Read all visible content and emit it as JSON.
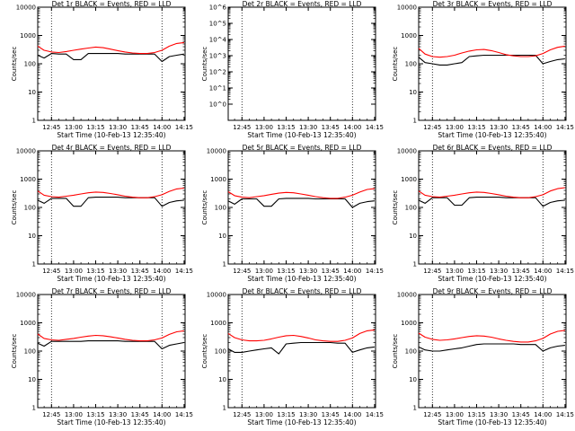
{
  "figure": {
    "xlabel": "Start Time (10-Feb-13 12:35:40)",
    "ylabel": "Counts/sec",
    "x_ticks": [
      "12:45",
      "13:00",
      "13:15",
      "13:30",
      "13:45",
      "14:00",
      "14:15"
    ],
    "colors": {
      "events": "#000000",
      "lld": "#ff0000",
      "axis": "#000000",
      "background": "#ffffff"
    }
  },
  "chart_data": [
    {
      "type": "line",
      "title": "Det 1r BLACK = Events, RED = LLD",
      "xlabel": "Start Time (10-Feb-13 12:35:40)",
      "ylabel": "Counts/sec",
      "xlim": [
        "12:35:40",
        "14:15:40"
      ],
      "y_scale": "log",
      "ylim": [
        1,
        10000
      ],
      "y_ticks": [
        "1",
        "10",
        "100",
        "1000",
        "10000"
      ],
      "vlines": [
        "12:45",
        "14:00"
      ],
      "series": [
        {
          "name": "Events",
          "color": "#000000",
          "x": [
            "12:35:40",
            "12:40",
            "12:45",
            "12:50",
            "12:55",
            "13:00",
            "13:05",
            "13:10",
            "13:15",
            "13:20",
            "13:25",
            "13:30",
            "13:35",
            "13:40",
            "13:45",
            "13:50",
            "13:55",
            "14:00",
            "14:05",
            "14:10",
            "14:15"
          ],
          "y": [
            200,
            160,
            230,
            220,
            220,
            140,
            140,
            230,
            230,
            230,
            230,
            230,
            220,
            220,
            220,
            220,
            220,
            120,
            180,
            200,
            220
          ]
        },
        {
          "name": "LLD",
          "color": "#ff0000",
          "x": [
            "12:35:40",
            "12:40",
            "12:45",
            "12:50",
            "12:55",
            "13:00",
            "13:05",
            "13:10",
            "13:15",
            "13:20",
            "13:25",
            "13:30",
            "13:35",
            "13:40",
            "13:45",
            "13:50",
            "13:55",
            "14:00",
            "14:05",
            "14:10",
            "14:15"
          ],
          "y": [
            420,
            300,
            260,
            250,
            270,
            300,
            330,
            360,
            390,
            370,
            330,
            290,
            260,
            240,
            230,
            230,
            250,
            300,
            420,
            520,
            560
          ]
        }
      ]
    },
    {
      "type": "line",
      "title": "Det 2r BLACK = Events, RED = LLD",
      "xlabel": "Start Time (10-Feb-13 12:35:40)",
      "ylabel": "Counts/sec",
      "xlim": [
        "12:35:40",
        "14:15:40"
      ],
      "y_scale": "log",
      "ylim": [
        0.1,
        1000000
      ],
      "y_ticks": [
        "10^0",
        "10^1",
        "10^2",
        "10^3",
        "10^4",
        "10^5",
        "10^6"
      ],
      "vlines": [
        "12:45",
        "14:00"
      ],
      "series": []
    },
    {
      "type": "line",
      "title": "Det 3r BLACK = Events, RED = LLD",
      "xlabel": "Start Time (10-Feb-13 12:35:40)",
      "ylabel": "Counts/sec",
      "xlim": [
        "12:35:40",
        "14:15:40"
      ],
      "y_scale": "log",
      "ylim": [
        1,
        10000
      ],
      "y_ticks": [
        "1",
        "10",
        "100",
        "1000",
        "10000"
      ],
      "vlines": [
        "12:45",
        "14:00"
      ],
      "series": [
        {
          "name": "Events",
          "color": "#000000",
          "x": [
            "12:35:40",
            "12:40",
            "12:45",
            "12:50",
            "12:55",
            "13:00",
            "13:05",
            "13:10",
            "13:15",
            "13:20",
            "13:25",
            "13:30",
            "13:35",
            "13:40",
            "13:45",
            "13:50",
            "13:55",
            "14:00",
            "14:05",
            "14:10",
            "14:15"
          ],
          "y": [
            170,
            110,
            100,
            90,
            90,
            100,
            110,
            180,
            190,
            200,
            200,
            200,
            200,
            200,
            200,
            200,
            200,
            100,
            120,
            140,
            150
          ]
        },
        {
          "name": "LLD",
          "color": "#ff0000",
          "x": [
            "12:35:40",
            "12:40",
            "12:45",
            "12:50",
            "12:55",
            "13:00",
            "13:05",
            "13:10",
            "13:15",
            "13:20",
            "13:25",
            "13:30",
            "13:35",
            "13:40",
            "13:45",
            "13:50",
            "13:55",
            "14:00",
            "14:05",
            "14:10",
            "14:15"
          ],
          "y": [
            350,
            220,
            180,
            170,
            180,
            200,
            240,
            280,
            310,
            320,
            290,
            250,
            210,
            190,
            180,
            180,
            190,
            230,
            310,
            380,
            420
          ]
        }
      ]
    },
    {
      "type": "line",
      "title": "Det 4r BLACK = Events, RED = LLD",
      "xlabel": "Start Time (10-Feb-13 12:35:40)",
      "ylabel": "Counts/sec",
      "xlim": [
        "12:35:40",
        "14:15:40"
      ],
      "y_scale": "log",
      "ylim": [
        1,
        10000
      ],
      "y_ticks": [
        "1",
        "10",
        "100",
        "1000",
        "10000"
      ],
      "vlines": [
        "12:45",
        "14:00"
      ],
      "series": [
        {
          "name": "Events",
          "color": "#000000",
          "x": [
            "12:35:40",
            "12:40",
            "12:45",
            "12:50",
            "12:55",
            "13:00",
            "13:05",
            "13:10",
            "13:15",
            "13:20",
            "13:25",
            "13:30",
            "13:35",
            "13:40",
            "13:45",
            "13:50",
            "13:55",
            "14:00",
            "14:05",
            "14:10",
            "14:15"
          ],
          "y": [
            180,
            140,
            210,
            210,
            210,
            110,
            110,
            220,
            230,
            230,
            230,
            230,
            220,
            220,
            220,
            220,
            220,
            110,
            150,
            170,
            180
          ]
        },
        {
          "name": "LLD",
          "color": "#ff0000",
          "x": [
            "12:35:40",
            "12:40",
            "12:45",
            "12:50",
            "12:55",
            "13:00",
            "13:05",
            "13:10",
            "13:15",
            "13:20",
            "13:25",
            "13:30",
            "13:35",
            "13:40",
            "13:45",
            "13:50",
            "13:55",
            "14:00",
            "14:05",
            "14:10",
            "14:15"
          ],
          "y": [
            380,
            270,
            240,
            230,
            250,
            270,
            300,
            330,
            350,
            340,
            310,
            280,
            250,
            230,
            220,
            220,
            240,
            280,
            370,
            450,
            480
          ]
        }
      ]
    },
    {
      "type": "line",
      "title": "Det 5r BLACK = Events, RED = LLD",
      "xlabel": "Start Time (10-Feb-13 12:35:40)",
      "ylabel": "Counts/sec",
      "xlim": [
        "12:35:40",
        "14:15:40"
      ],
      "y_scale": "log",
      "ylim": [
        1,
        10000
      ],
      "y_ticks": [
        "1",
        "10",
        "100",
        "1000",
        "10000"
      ],
      "vlines": [
        "12:45",
        "14:00"
      ],
      "series": [
        {
          "name": "Events",
          "color": "#000000",
          "x": [
            "12:35:40",
            "12:40",
            "12:45",
            "12:50",
            "12:55",
            "13:00",
            "13:05",
            "13:10",
            "13:15",
            "13:20",
            "13:25",
            "13:30",
            "13:35",
            "13:40",
            "13:45",
            "13:50",
            "13:55",
            "14:00",
            "14:05",
            "14:10",
            "14:15"
          ],
          "y": [
            170,
            130,
            200,
            200,
            200,
            110,
            110,
            200,
            210,
            210,
            210,
            210,
            200,
            200,
            200,
            200,
            200,
            100,
            140,
            160,
            170
          ]
        },
        {
          "name": "LLD",
          "color": "#ff0000",
          "x": [
            "12:35:40",
            "12:40",
            "12:45",
            "12:50",
            "12:55",
            "13:00",
            "13:05",
            "13:10",
            "13:15",
            "13:20",
            "13:25",
            "13:30",
            "13:35",
            "13:40",
            "13:45",
            "13:50",
            "13:55",
            "14:00",
            "14:05",
            "14:10",
            "14:15"
          ],
          "y": [
            360,
            260,
            230,
            220,
            240,
            260,
            290,
            320,
            340,
            330,
            300,
            270,
            240,
            220,
            210,
            210,
            230,
            270,
            350,
            430,
            460
          ]
        }
      ]
    },
    {
      "type": "line",
      "title": "Det 6r BLACK = Events, RED = LLD",
      "xlabel": "Start Time (10-Feb-13 12:35:40)",
      "ylabel": "Counts/sec",
      "xlim": [
        "12:35:40",
        "14:15:40"
      ],
      "y_scale": "log",
      "ylim": [
        1,
        10000
      ],
      "y_ticks": [
        "1",
        "10",
        "100",
        "1000",
        "10000"
      ],
      "vlines": [
        "12:45",
        "14:00"
      ],
      "series": [
        {
          "name": "Events",
          "color": "#000000",
          "x": [
            "12:35:40",
            "12:40",
            "12:45",
            "12:50",
            "12:55",
            "13:00",
            "13:05",
            "13:10",
            "13:15",
            "13:20",
            "13:25",
            "13:30",
            "13:35",
            "13:40",
            "13:45",
            "13:50",
            "13:55",
            "14:00",
            "14:05",
            "14:10",
            "14:15"
          ],
          "y": [
            180,
            140,
            220,
            220,
            220,
            120,
            120,
            220,
            230,
            230,
            230,
            230,
            220,
            220,
            220,
            220,
            220,
            110,
            150,
            170,
            180
          ]
        },
        {
          "name": "LLD",
          "color": "#ff0000",
          "x": [
            "12:35:40",
            "12:40",
            "12:45",
            "12:50",
            "12:55",
            "13:00",
            "13:05",
            "13:10",
            "13:15",
            "13:20",
            "13:25",
            "13:30",
            "13:35",
            "13:40",
            "13:45",
            "13:50",
            "13:55",
            "14:00",
            "14:05",
            "14:10",
            "14:15"
          ],
          "y": [
            380,
            270,
            240,
            230,
            250,
            270,
            300,
            330,
            350,
            340,
            310,
            280,
            250,
            230,
            220,
            220,
            240,
            280,
            380,
            460,
            500
          ]
        }
      ]
    },
    {
      "type": "line",
      "title": "Det 7r BLACK = Events, RED = LLD",
      "xlabel": "Start Time (10-Feb-13 12:35:40)",
      "ylabel": "Counts/sec",
      "xlim": [
        "12:35:40",
        "14:15:40"
      ],
      "y_scale": "log",
      "ylim": [
        1,
        10000
      ],
      "y_ticks": [
        "1",
        "10",
        "100",
        "1000",
        "10000"
      ],
      "vlines": [
        "12:45",
        "14:00"
      ],
      "series": [
        {
          "name": "Events",
          "color": "#000000",
          "x": [
            "12:35:40",
            "12:40",
            "12:45",
            "12:50",
            "12:55",
            "13:00",
            "13:05",
            "13:10",
            "13:15",
            "13:20",
            "13:25",
            "13:30",
            "13:35",
            "13:40",
            "13:45",
            "13:50",
            "13:55",
            "14:00",
            "14:05",
            "14:10",
            "14:15"
          ],
          "y": [
            190,
            150,
            220,
            220,
            220,
            220,
            220,
            230,
            230,
            230,
            230,
            230,
            220,
            220,
            220,
            220,
            220,
            120,
            160,
            180,
            200
          ]
        },
        {
          "name": "LLD",
          "color": "#ff0000",
          "x": [
            "12:35:40",
            "12:40",
            "12:45",
            "12:50",
            "12:55",
            "13:00",
            "13:05",
            "13:10",
            "13:15",
            "13:20",
            "13:25",
            "13:30",
            "13:35",
            "13:40",
            "13:45",
            "13:50",
            "13:55",
            "14:00",
            "14:05",
            "14:10",
            "14:15"
          ],
          "y": [
            400,
            280,
            250,
            240,
            260,
            280,
            310,
            340,
            360,
            350,
            320,
            290,
            260,
            240,
            230,
            230,
            250,
            290,
            390,
            480,
            520
          ]
        }
      ]
    },
    {
      "type": "line",
      "title": "Det 8r BLACK = Events, RED = LLD",
      "xlabel": "Start Time (10-Feb-13 12:35:40)",
      "ylabel": "Counts/sec",
      "xlim": [
        "12:35:40",
        "14:15:40"
      ],
      "y_scale": "log",
      "ylim": [
        1,
        10000
      ],
      "y_ticks": [
        "1",
        "10",
        "100",
        "1000",
        "10000"
      ],
      "vlines": [
        "12:45",
        "14:00"
      ],
      "series": [
        {
          "name": "Events",
          "color": "#000000",
          "x": [
            "12:35:40",
            "12:40",
            "12:45",
            "12:50",
            "12:55",
            "13:00",
            "13:05",
            "13:10",
            "13:15",
            "13:20",
            "13:25",
            "13:30",
            "13:35",
            "13:40",
            "13:45",
            "13:50",
            "13:55",
            "14:00",
            "14:05",
            "14:10",
            "14:15"
          ],
          "y": [
            120,
            90,
            90,
            100,
            110,
            120,
            130,
            80,
            180,
            190,
            200,
            200,
            200,
            200,
            200,
            190,
            190,
            90,
            110,
            130,
            140
          ]
        },
        {
          "name": "LLD",
          "color": "#ff0000",
          "x": [
            "12:35:40",
            "12:40",
            "12:45",
            "12:50",
            "12:55",
            "13:00",
            "13:05",
            "13:10",
            "13:15",
            "13:20",
            "13:25",
            "13:30",
            "13:35",
            "13:40",
            "13:45",
            "13:50",
            "13:55",
            "14:00",
            "14:05",
            "14:10",
            "14:15"
          ],
          "y": [
            420,
            300,
            250,
            230,
            230,
            240,
            270,
            310,
            350,
            360,
            330,
            290,
            250,
            230,
            220,
            220,
            240,
            290,
            420,
            520,
            560
          ]
        }
      ]
    },
    {
      "type": "line",
      "title": "Det 9r BLACK = Events, RED = LLD",
      "xlabel": "Start Time (10-Feb-13 12:35:40)",
      "ylabel": "Counts/sec",
      "xlim": [
        "12:35:40",
        "14:15:40"
      ],
      "y_scale": "log",
      "ylim": [
        1,
        10000
      ],
      "y_ticks": [
        "1",
        "10",
        "100",
        "1000",
        "10000"
      ],
      "vlines": [
        "12:45",
        "14:00"
      ],
      "series": [
        {
          "name": "Events",
          "color": "#000000",
          "x": [
            "12:35:40",
            "12:40",
            "12:45",
            "12:50",
            "12:55",
            "13:00",
            "13:05",
            "13:10",
            "13:15",
            "13:20",
            "13:25",
            "13:30",
            "13:35",
            "13:40",
            "13:45",
            "13:50",
            "13:55",
            "14:00",
            "14:05",
            "14:10",
            "14:15"
          ],
          "y": [
            140,
            110,
            100,
            100,
            110,
            120,
            130,
            150,
            170,
            180,
            180,
            180,
            180,
            180,
            170,
            170,
            170,
            100,
            130,
            150,
            160
          ]
        },
        {
          "name": "LLD",
          "color": "#ff0000",
          "x": [
            "12:35:40",
            "12:40",
            "12:45",
            "12:50",
            "12:55",
            "13:00",
            "13:05",
            "13:10",
            "13:15",
            "13:20",
            "13:25",
            "13:30",
            "13:35",
            "13:40",
            "13:45",
            "13:50",
            "13:55",
            "14:00",
            "14:05",
            "14:10",
            "14:15"
          ],
          "y": [
            430,
            310,
            260,
            240,
            250,
            270,
            300,
            330,
            350,
            340,
            310,
            270,
            240,
            220,
            210,
            210,
            230,
            280,
            400,
            500,
            540
          ]
        }
      ]
    }
  ]
}
